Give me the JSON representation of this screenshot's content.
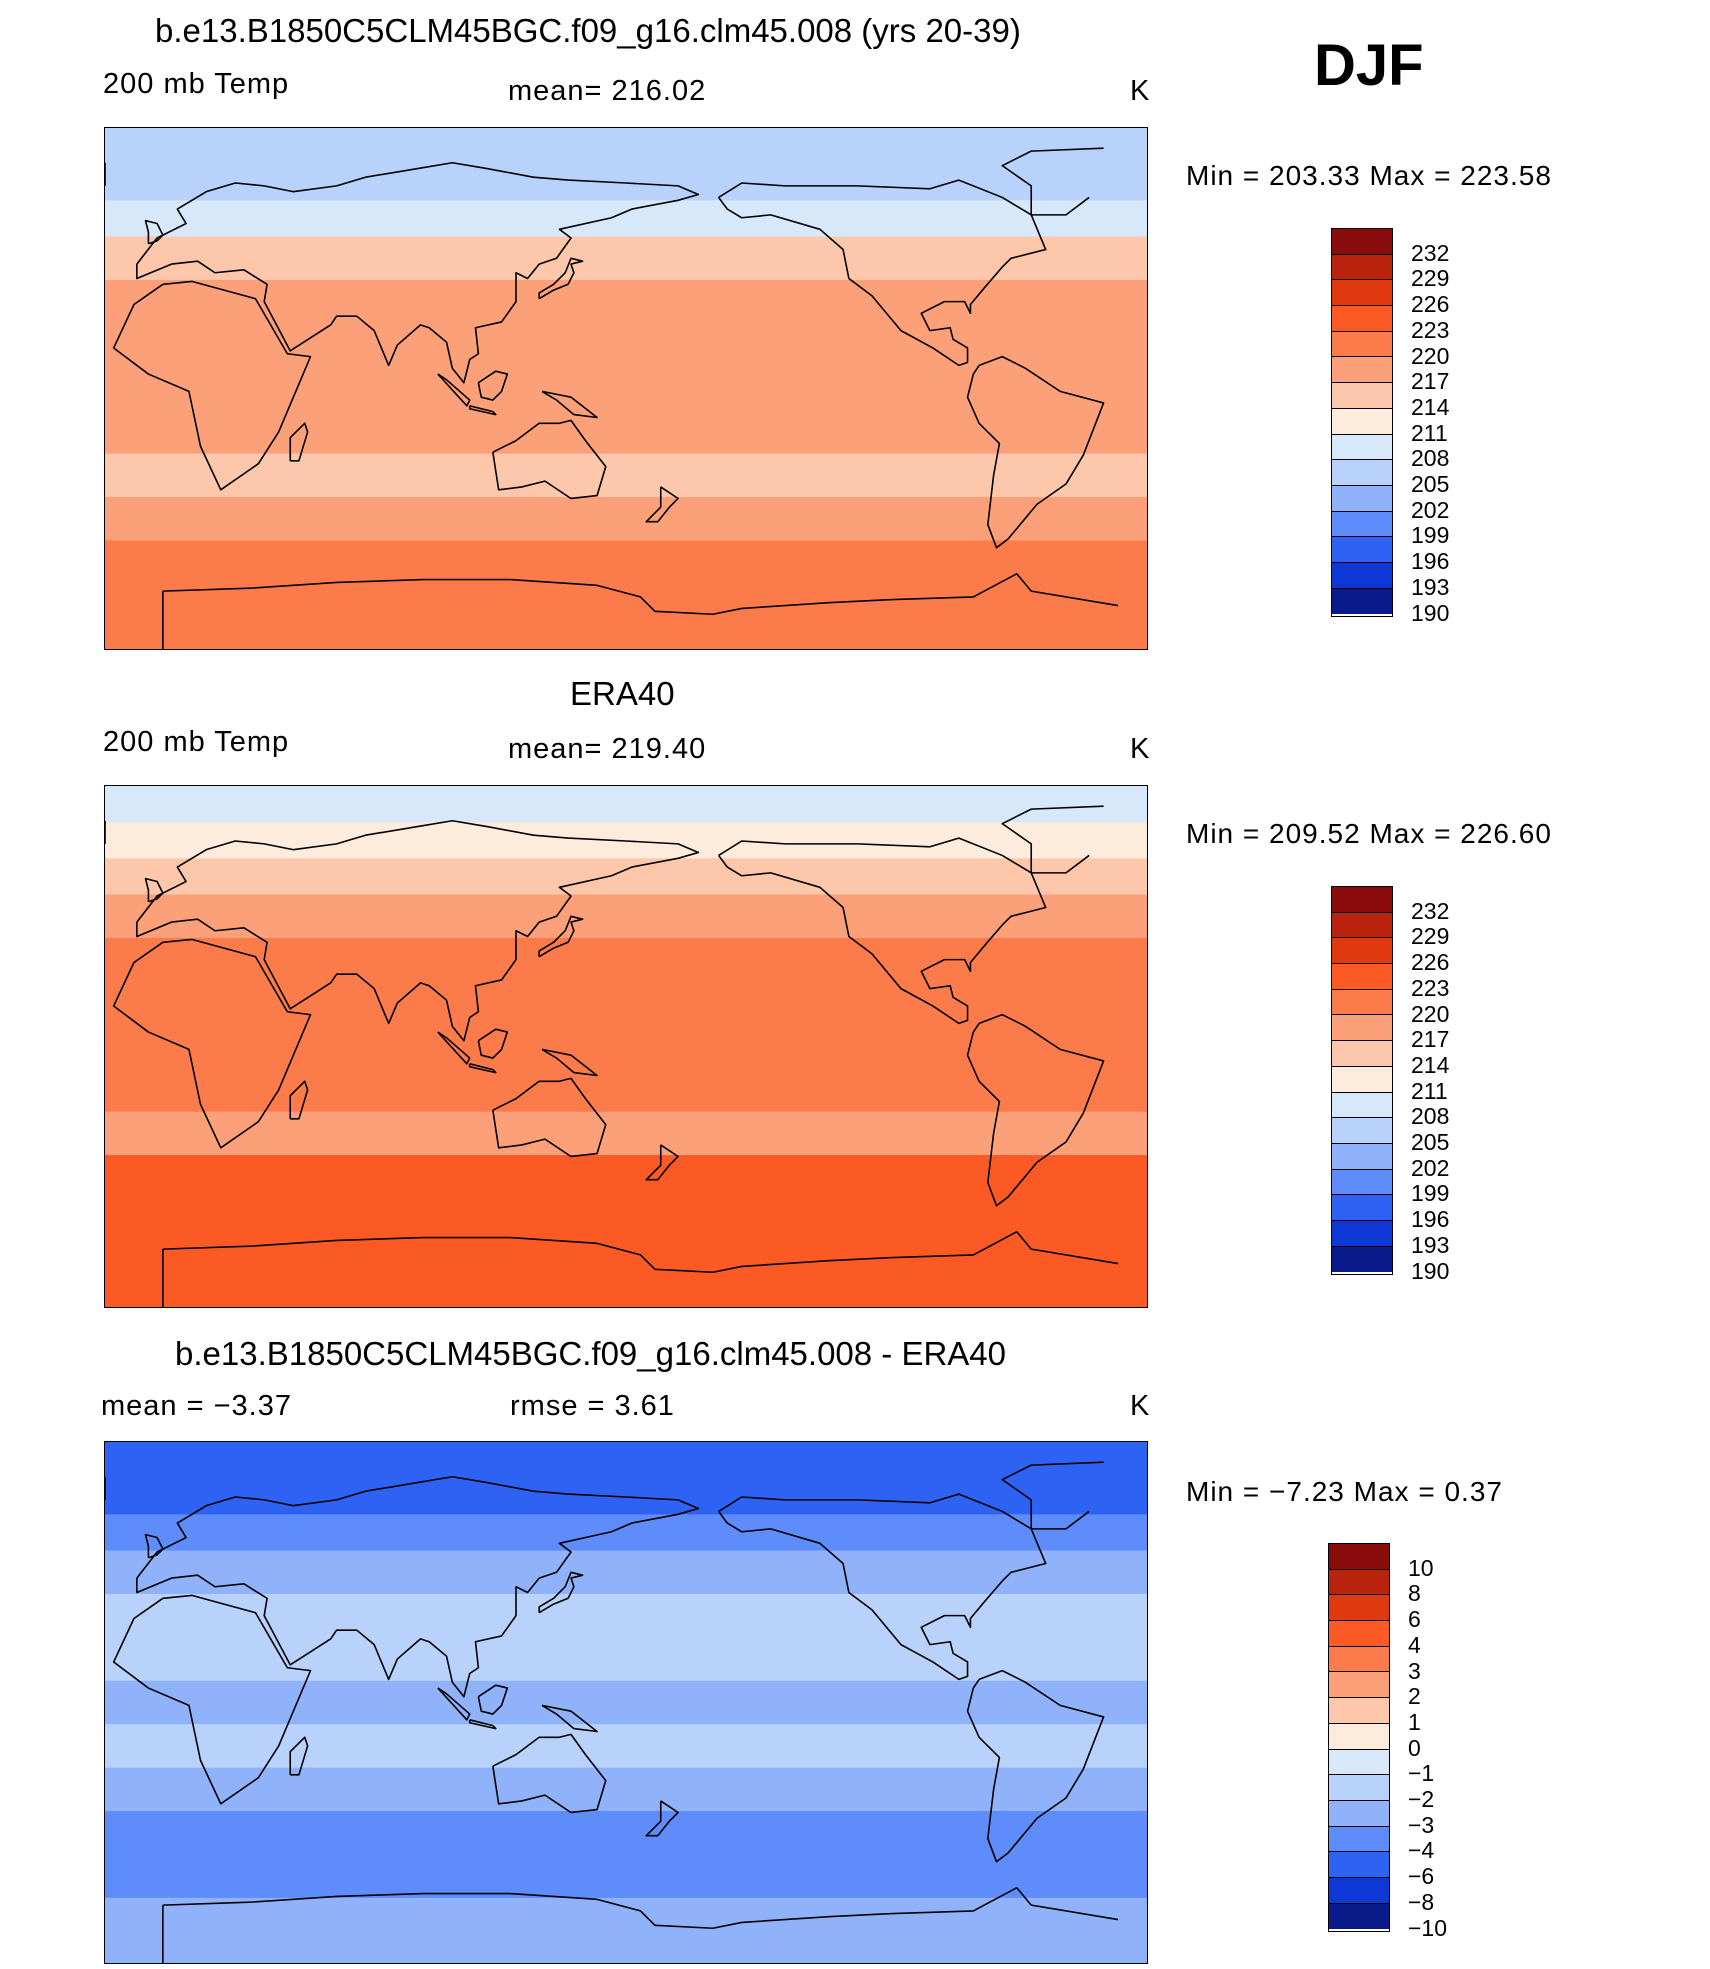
{
  "season": "DJF",
  "panels": [
    {
      "title": "b.e13.B1850C5CLM45BGC.f09_g16.clm45.008 (yrs 20-39)",
      "left_label": "200 mb Temp",
      "center_label": "mean=  216.02",
      "units": "K",
      "minmax": "Min  =  203.33  Max  =  223.58"
    },
    {
      "title": "ERA40",
      "left_label": "200 mb Temp",
      "center_label": "mean=  219.40",
      "units": "K",
      "minmax": "Min  =  209.52  Max  =  226.60"
    },
    {
      "title": "b.e13.B1850C5CLM45BGC.f09_g16.clm45.008 - ERA40",
      "left_label": "mean  =     −3.37",
      "center_label": "rmse  =      3.61",
      "units": "K",
      "minmax": "Min  =    −7.23  Max  =      0.37"
    }
  ],
  "chart_data": [
    {
      "type": "heatmap",
      "title": "b.e13.B1850C5CLM45BGC.f09_g16.clm45.008 (yrs 20-39)",
      "field": "200 mb Temp",
      "units": "K",
      "mean": 216.02,
      "min": 203.33,
      "max": 223.58,
      "colorbar_levels": [
        "232",
        "229",
        "226",
        "223",
        "220",
        "217",
        "214",
        "211",
        "208",
        "205",
        "202",
        "199",
        "196",
        "193",
        "190"
      ],
      "colorbar_colors": [
        "#8a0b0b",
        "#b9230e",
        "#e0390f",
        "#fc5a24",
        "#fc7b4b",
        "#fca07a",
        "#fcc7aa",
        "#fdebdb",
        "#d8e8fb",
        "#b8d2fb",
        "#8fb2fb",
        "#5e8cfa",
        "#2d62f3",
        "#0e38d6",
        "#0b1a8a"
      ],
      "zonal_profile": [
        {
          "lat": 85,
          "value": 205
        },
        {
          "lat": 70,
          "value": 206
        },
        {
          "lat": 60,
          "value": 209
        },
        {
          "lat": 45,
          "value": 214
        },
        {
          "lat": 30,
          "value": 218
        },
        {
          "lat": 15,
          "value": 219
        },
        {
          "lat": 0,
          "value": 218
        },
        {
          "lat": -15,
          "value": 218
        },
        {
          "lat": -30,
          "value": 215
        },
        {
          "lat": -45,
          "value": 219
        },
        {
          "lat": -60,
          "value": 220
        },
        {
          "lat": -75,
          "value": 221
        }
      ]
    },
    {
      "type": "heatmap",
      "title": "ERA40",
      "field": "200 mb Temp",
      "units": "K",
      "mean": 219.4,
      "min": 209.52,
      "max": 226.6,
      "colorbar_levels": [
        "232",
        "229",
        "226",
        "223",
        "220",
        "217",
        "214",
        "211",
        "208",
        "205",
        "202",
        "199",
        "196",
        "193",
        "190"
      ],
      "colorbar_colors": [
        "#8a0b0b",
        "#b9230e",
        "#e0390f",
        "#fc5a24",
        "#fc7b4b",
        "#fca07a",
        "#fcc7aa",
        "#fdebdb",
        "#d8e8fb",
        "#b8d2fb",
        "#8fb2fb",
        "#5e8cfa",
        "#2d62f3",
        "#0e38d6",
        "#0b1a8a"
      ],
      "zonal_profile": [
        {
          "lat": 85,
          "value": 210
        },
        {
          "lat": 70,
          "value": 213
        },
        {
          "lat": 60,
          "value": 215
        },
        {
          "lat": 45,
          "value": 219
        },
        {
          "lat": 30,
          "value": 221
        },
        {
          "lat": 15,
          "value": 220
        },
        {
          "lat": 0,
          "value": 221
        },
        {
          "lat": -15,
          "value": 220
        },
        {
          "lat": -30,
          "value": 217
        },
        {
          "lat": -45,
          "value": 223
        },
        {
          "lat": -60,
          "value": 224
        },
        {
          "lat": -75,
          "value": 224
        }
      ]
    },
    {
      "type": "heatmap",
      "title": "b.e13.B1850C5CLM45BGC.f09_g16.clm45.008 - ERA40",
      "field": "difference",
      "units": "K",
      "mean": -3.37,
      "rmse": 3.61,
      "min": -7.23,
      "max": 0.37,
      "colorbar_levels": [
        "10",
        "8",
        "6",
        "4",
        "3",
        "2",
        "1",
        "0",
        "−1",
        "−2",
        "−3",
        "−4",
        "−6",
        "−8",
        "−10"
      ],
      "colorbar_colors": [
        "#8a0b0b",
        "#b9230e",
        "#e0390f",
        "#fc5a24",
        "#fc7b4b",
        "#fca07a",
        "#fcc7aa",
        "#fdebdb",
        "#d8e8fb",
        "#b8d2fb",
        "#8fb2fb",
        "#5e8cfa",
        "#2d62f3",
        "#0e38d6",
        "#0b1a8a"
      ],
      "zonal_profile": [
        {
          "lat": 85,
          "value": -5
        },
        {
          "lat": 70,
          "value": -5
        },
        {
          "lat": 60,
          "value": -4
        },
        {
          "lat": 45,
          "value": -3
        },
        {
          "lat": 30,
          "value": -2
        },
        {
          "lat": 15,
          "value": -2
        },
        {
          "lat": 0,
          "value": -3
        },
        {
          "lat": -15,
          "value": -2
        },
        {
          "lat": -30,
          "value": -3
        },
        {
          "lat": -45,
          "value": -4
        },
        {
          "lat": -60,
          "value": -4
        },
        {
          "lat": -75,
          "value": -3
        }
      ]
    }
  ]
}
